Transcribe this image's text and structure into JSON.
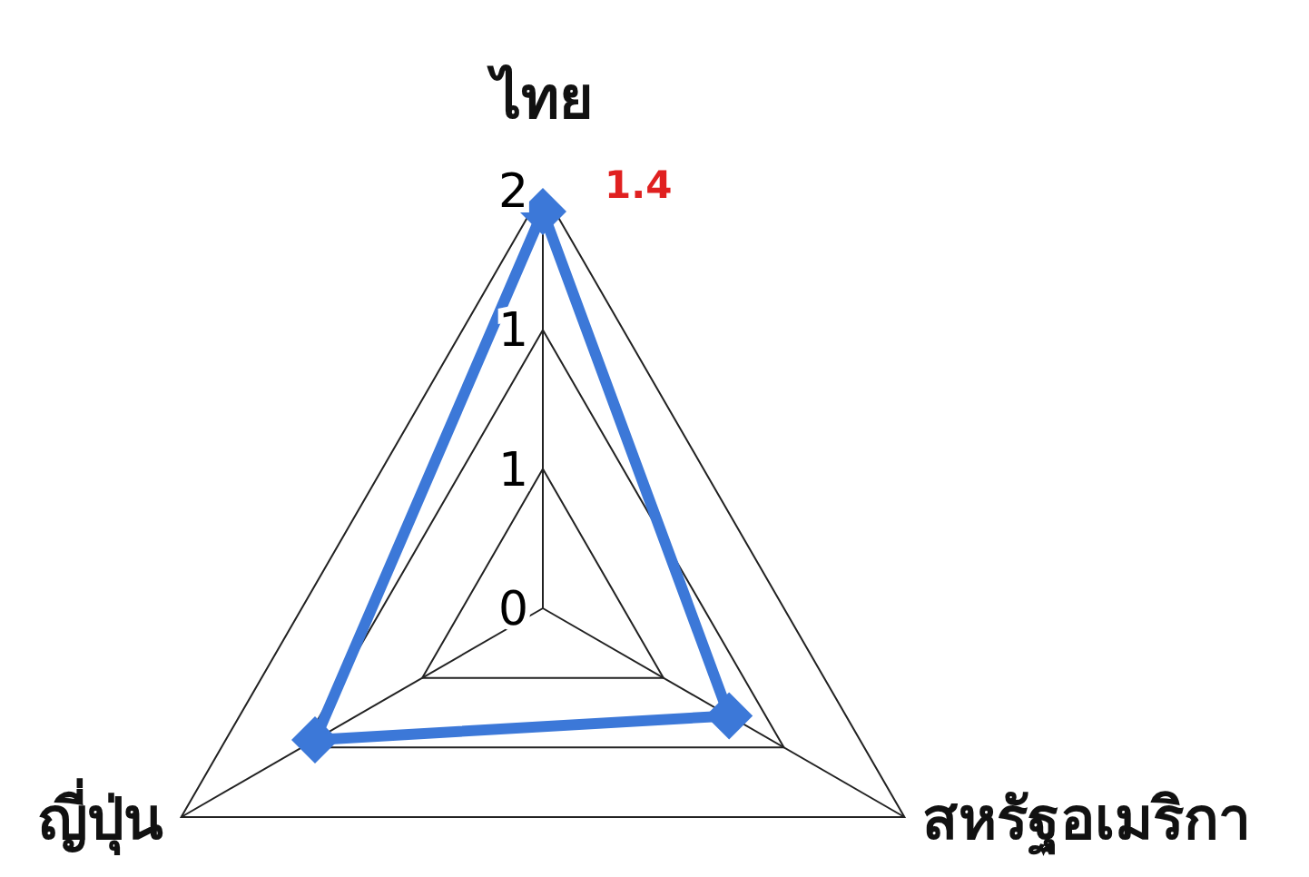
{
  "chart_data": {
    "type": "radar",
    "categories": [
      "ไทย",
      "สหรัฐอเมริกา",
      "ญี่ปุ่น"
    ],
    "series": [
      {
        "color": "#3c78d8",
        "values": [
          1.9,
          1.03,
          1.26
        ]
      }
    ],
    "ylim": [
      0,
      2
    ],
    "yticks": [
      0,
      {
        "value": 0.667,
        "label": "1"
      },
      {
        "value": 1.333,
        "label": "1"
      },
      2
    ],
    "grid": true,
    "marker": "diamond",
    "annotations": [
      "1.4"
    ]
  }
}
